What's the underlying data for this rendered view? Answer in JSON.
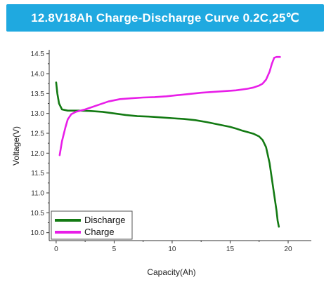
{
  "banner": {
    "title": "12.8V18Ah Charge-Discharge Curve 0.2C,25℃",
    "background": "#1fa9e0"
  },
  "chart_data": {
    "type": "line",
    "title": "12.8V18Ah Charge-Discharge Curve 0.2C,25℃",
    "xlabel": "Capacity(Ah)",
    "ylabel": "Voltage(V)",
    "xlim": [
      -0.6,
      22
    ],
    "ylim": [
      9.8,
      14.6
    ],
    "xticks": [
      "0",
      "5",
      "10",
      "15",
      "20"
    ],
    "yticks": [
      "10.0",
      "10.5",
      "11.0",
      "11.5",
      "12.0",
      "12.5",
      "13.0",
      "13.5",
      "14.0",
      "14.5"
    ],
    "grid": false,
    "legend_position": "bottom-left",
    "series": [
      {
        "name": "Discharge",
        "color": "#137a13",
        "x": [
          0.0,
          0.1,
          0.25,
          0.5,
          1.0,
          2.0,
          3.0,
          4.0,
          5.0,
          6.0,
          7.0,
          8.0,
          9.0,
          10.0,
          11.0,
          12.0,
          13.0,
          14.0,
          15.0,
          15.5,
          16.0,
          16.5,
          17.0,
          17.5,
          17.8,
          18.1,
          18.4,
          18.6,
          18.8,
          19.0,
          19.1,
          19.2
        ],
        "y": [
          13.78,
          13.5,
          13.25,
          13.1,
          13.07,
          13.07,
          13.06,
          13.04,
          13.0,
          12.96,
          12.93,
          12.92,
          12.9,
          12.88,
          12.86,
          12.83,
          12.78,
          12.72,
          12.66,
          12.62,
          12.57,
          12.53,
          12.49,
          12.42,
          12.33,
          12.15,
          11.75,
          11.35,
          10.95,
          10.55,
          10.3,
          10.15
        ]
      },
      {
        "name": "Charge",
        "color": "#e81ee8",
        "x": [
          0.3,
          0.5,
          0.8,
          1.0,
          1.3,
          1.7,
          2.5,
          3.5,
          4.5,
          5.5,
          6.5,
          7.5,
          8.5,
          9.5,
          10.5,
          11.5,
          12.5,
          13.5,
          14.5,
          15.5,
          16.5,
          17.0,
          17.5,
          17.8,
          18.1,
          18.4,
          18.6,
          18.8,
          19.0,
          19.3
        ],
        "y": [
          11.95,
          12.3,
          12.65,
          12.85,
          12.98,
          13.04,
          13.1,
          13.2,
          13.3,
          13.36,
          13.38,
          13.4,
          13.41,
          13.43,
          13.46,
          13.49,
          13.52,
          13.54,
          13.56,
          13.58,
          13.62,
          13.65,
          13.7,
          13.75,
          13.85,
          14.05,
          14.25,
          14.4,
          14.42,
          14.42
        ]
      }
    ]
  }
}
